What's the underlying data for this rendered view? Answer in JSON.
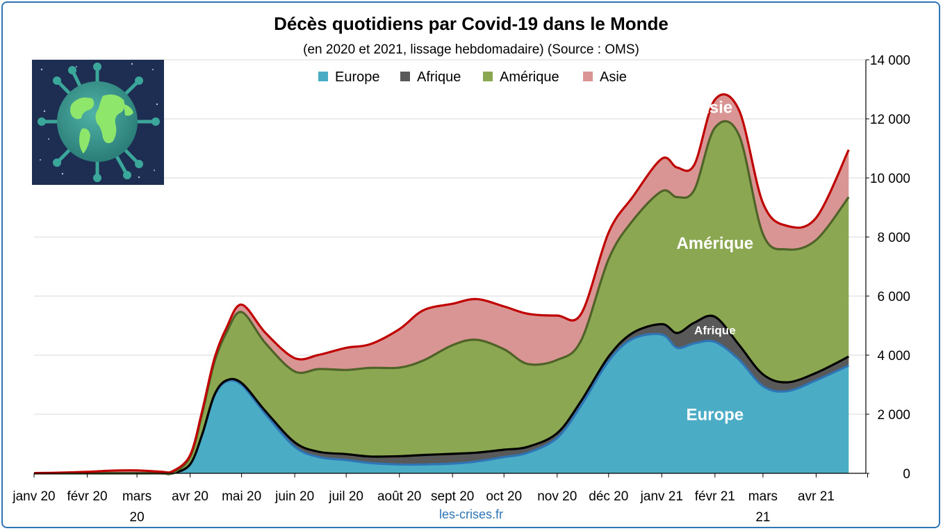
{
  "chart_data": {
    "type": "area",
    "stacked": true,
    "title": "Décès quotidiens par Covid-19 dans le Monde",
    "subtitle": "(en 2020 et 2021, lissage hebdomadaire)  (Source : OMS)",
    "ylim": [
      0,
      14000
    ],
    "yticks": [
      0,
      2000,
      4000,
      6000,
      8000,
      10000,
      12000,
      14000
    ],
    "ytick_labels": [
      "0",
      "2 000",
      "4 000",
      "6 000",
      "8 000",
      "10 000",
      "12 000",
      "14 000"
    ],
    "y_axis_position": "right",
    "grid": true,
    "legend_position": "top-center",
    "x": [
      "2020-01-01",
      "2020-01-15",
      "2020-02-01",
      "2020-02-15",
      "2020-03-01",
      "2020-03-15",
      "2020-03-22",
      "2020-04-01",
      "2020-04-08",
      "2020-04-15",
      "2020-04-22",
      "2020-05-01",
      "2020-05-15",
      "2020-06-01",
      "2020-06-15",
      "2020-07-01",
      "2020-07-15",
      "2020-08-01",
      "2020-08-15",
      "2020-09-01",
      "2020-09-15",
      "2020-10-01",
      "2020-10-15",
      "2020-11-01",
      "2020-11-15",
      "2020-12-01",
      "2020-12-15",
      "2021-01-01",
      "2021-01-10",
      "2021-01-20",
      "2021-02-01",
      "2021-02-15",
      "2021-03-01",
      "2021-03-15",
      "2021-04-01",
      "2021-04-20"
    ],
    "series": [
      {
        "name": "Europe",
        "color": "#4bacc6",
        "line_color": "#2e75b6",
        "values": [
          0,
          0,
          0,
          0,
          0,
          0,
          5,
          300,
          1300,
          2600,
          3100,
          3000,
          2000,
          900,
          550,
          450,
          350,
          300,
          300,
          330,
          400,
          550,
          700,
          1200,
          2300,
          3800,
          4550,
          4700,
          4250,
          4400,
          4450,
          3850,
          2950,
          2780,
          3150,
          3650
        ]
      },
      {
        "name": "Afrique",
        "color": "#595959",
        "line_color": "#000000",
        "values": [
          0,
          0,
          0,
          0,
          0,
          0,
          0,
          5,
          15,
          30,
          40,
          60,
          100,
          150,
          180,
          200,
          220,
          280,
          320,
          330,
          300,
          250,
          200,
          160,
          150,
          150,
          200,
          350,
          500,
          700,
          850,
          500,
          400,
          300,
          250,
          300
        ]
      },
      {
        "name": "Amérique",
        "color": "#8ba751",
        "line_color": "#4f6228",
        "values": [
          0,
          0,
          0,
          0,
          0,
          5,
          10,
          250,
          700,
          1100,
          1600,
          2400,
          2300,
          2400,
          2800,
          2850,
          3000,
          3000,
          3200,
          3680,
          3820,
          3400,
          2800,
          2480,
          2050,
          3300,
          3800,
          4500,
          4600,
          4500,
          6400,
          7100,
          4750,
          4500,
          4500,
          5400
        ]
      },
      {
        "name": "Asie",
        "color": "#d99594",
        "line_color": "#c00000",
        "values": [
          10,
          20,
          50,
          90,
          100,
          50,
          60,
          60,
          90,
          120,
          160,
          250,
          350,
          450,
          480,
          750,
          800,
          1300,
          1700,
          1400,
          1380,
          1450,
          1700,
          1500,
          900,
          900,
          800,
          1100,
          1000,
          850,
          950,
          850,
          1050,
          800,
          750,
          1600
        ]
      }
    ],
    "x_tick_labels": [
      "janv 20",
      "févr 20",
      "mars\n20",
      "avr 20",
      "mai 20",
      "juin 20",
      "juil 20",
      "août 20",
      "sept 20",
      "oct 20",
      "nov 20",
      "déc 20",
      "janv 21",
      "févr 21",
      "mars\n21",
      "avr 21"
    ],
    "annotations": [
      {
        "text": "Asie",
        "x": "2021-02-01",
        "y": 12400
      },
      {
        "text": "Amérique",
        "x": "2021-02-01",
        "y": 7800
      },
      {
        "text": "Afrique",
        "x": "2021-02-01",
        "y": 4850
      },
      {
        "text": "Europe",
        "x": "2021-02-01",
        "y": 2000
      }
    ]
  },
  "source_label": "les-crises.fr"
}
